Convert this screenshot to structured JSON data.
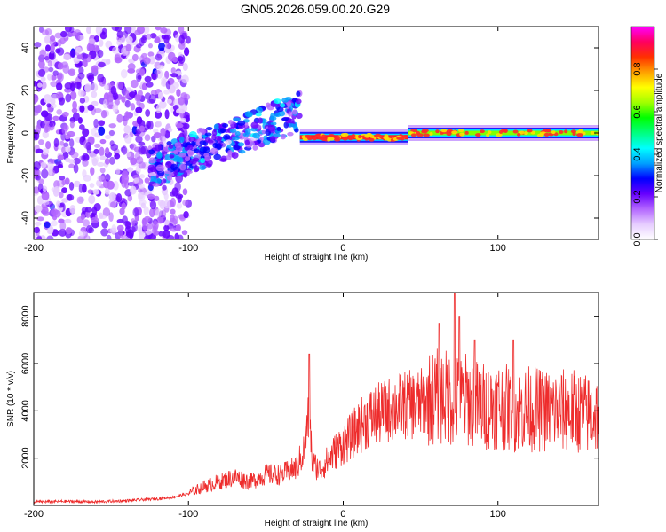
{
  "title": "GN05.2026.059.00.20.G29",
  "chart_data": [
    {
      "type": "heatmap",
      "title": "GN05.2026.059.00.20.G29",
      "xlabel": "Height of straight line (km)",
      "ylabel": "Frequency (Hz)",
      "xlim": [
        -200,
        165
      ],
      "ylim": [
        -50,
        50
      ],
      "xticks": [
        -200,
        -100,
        0,
        100
      ],
      "yticks": [
        -40,
        -20,
        0,
        20,
        40
      ],
      "colorbar": {
        "label": "Normalized spectral amplitude",
        "range": [
          0,
          1
        ],
        "ticks": [
          0.0,
          0.2,
          0.4,
          0.6,
          0.8
        ],
        "colors": [
          "#ffffff",
          "#e6ccff",
          "#b366ff",
          "#6600ff",
          "#0000ff",
          "#00a0ff",
          "#00ffff",
          "#00ff80",
          "#00ff00",
          "#a0ff00",
          "#ffff00",
          "#ffa000",
          "#ff3000",
          "#ff0060",
          "#ff00ff"
        ]
      },
      "segments": [
        {
          "name": "noise",
          "x_range": [
            -200,
            -110
          ],
          "center_hz": 0,
          "spread_hz": 50,
          "amplitude": 0.12
        },
        {
          "name": "rising-trace",
          "x_range": [
            -125,
            -28
          ],
          "start_hz": -17,
          "end_hz": 10,
          "amplitude": 0.35
        },
        {
          "name": "steady-line",
          "x_range": [
            -28,
            42
          ],
          "center_hz": -2,
          "amplitude": 0.95
        },
        {
          "name": "steady-line-2",
          "x_range": [
            42,
            165
          ],
          "center_hz": 0,
          "amplitude": 0.6
        }
      ]
    },
    {
      "type": "line",
      "xlabel": "Height of straight line (km)",
      "ylabel": "SNR (10 * v/v)",
      "xlim": [
        -200,
        165
      ],
      "ylim": [
        0,
        9000
      ],
      "xticks": [
        -200,
        -100,
        0,
        100
      ],
      "yticks": [
        2000,
        4000,
        6000,
        8000
      ],
      "color": "#ee2c2c",
      "series": [
        {
          "name": "SNR",
          "x": [
            -200,
            -180,
            -160,
            -140,
            -120,
            -110,
            -100,
            -90,
            -80,
            -70,
            -60,
            -50,
            -40,
            -30,
            -25,
            -22,
            -20,
            -15,
            -10,
            -5,
            0,
            5,
            10,
            15,
            20,
            25,
            30,
            35,
            40,
            45,
            50,
            55,
            60,
            65,
            70,
            75,
            80,
            85,
            90,
            95,
            100,
            110,
            120,
            130,
            140,
            150,
            160,
            165
          ],
          "y": [
            150,
            170,
            150,
            200,
            280,
            350,
            500,
            800,
            1000,
            1200,
            1000,
            1300,
            1300,
            1600,
            2400,
            4000,
            1800,
            1500,
            1900,
            2300,
            2600,
            2900,
            3300,
            3600,
            3800,
            3900,
            4050,
            4200,
            4250,
            4250,
            4300,
            4500,
            4600,
            4600,
            4500,
            4400,
            4500,
            4300,
            4200,
            4200,
            4300,
            4000,
            4100,
            4000,
            4000,
            4000,
            3800,
            3900
          ],
          "spikes": [
            {
              "x": -22,
              "y": 6400
            },
            {
              "x": 62,
              "y": 7700
            },
            {
              "x": 72,
              "y": 9000
            },
            {
              "x": 75,
              "y": 8000
            },
            {
              "x": 85,
              "y": 7000
            },
            {
              "x": 110,
              "y": 7000
            }
          ]
        }
      ]
    }
  ]
}
